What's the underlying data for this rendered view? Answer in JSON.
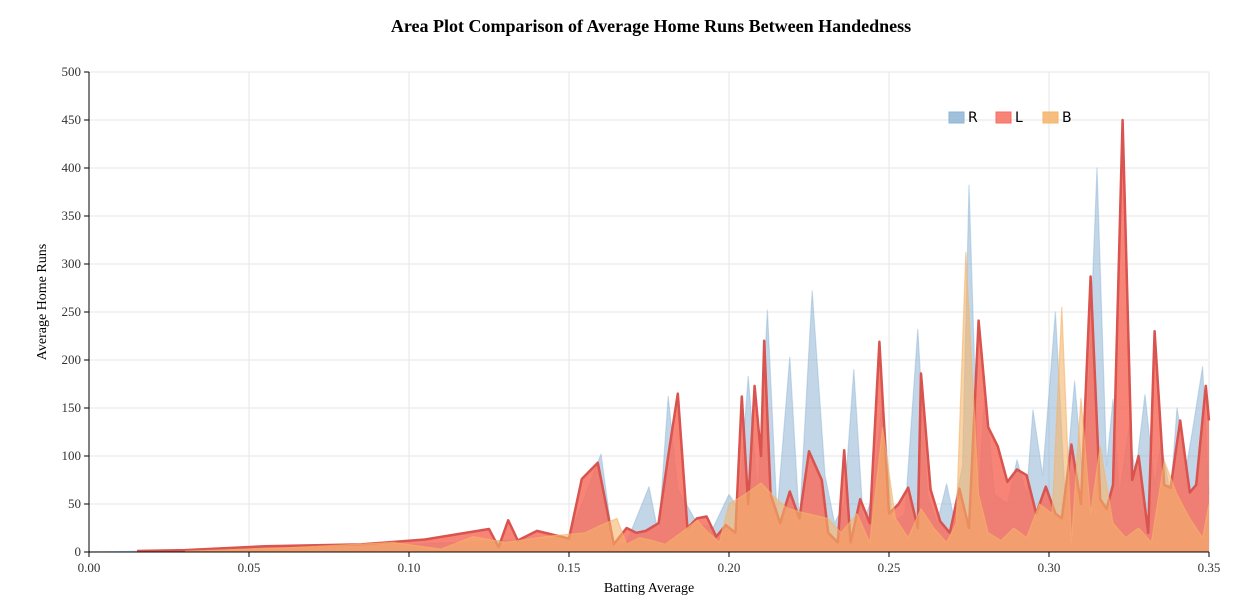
{
  "chart_data": {
    "type": "area",
    "title": "Area Plot Comparison of Average Home Runs Between Handedness",
    "xlabel": "Batting Average",
    "ylabel": "Average Home Runs",
    "xlim": [
      0,
      0.35
    ],
    "ylim": [
      0,
      500
    ],
    "x_ticks": [
      "0.00",
      "0.05",
      "0.10",
      "0.15",
      "0.20",
      "0.25",
      "0.30",
      "0.35"
    ],
    "y_ticks": [
      "0",
      "50",
      "100",
      "150",
      "200",
      "250",
      "300",
      "350",
      "400",
      "450",
      "500"
    ],
    "grid": true,
    "legend_position": "top-right",
    "series": [
      {
        "name": "R",
        "color": "#8fb5d6",
        "points": [
          [
            0,
            0
          ],
          [
            0.05,
            3
          ],
          [
            0.1,
            8
          ],
          [
            0.15,
            15
          ],
          [
            0.16,
            102
          ],
          [
            0.164,
            5
          ],
          [
            0.168,
            10
          ],
          [
            0.175,
            68
          ],
          [
            0.178,
            18
          ],
          [
            0.181,
            162
          ],
          [
            0.184,
            65
          ],
          [
            0.187,
            48
          ],
          [
            0.19,
            30
          ],
          [
            0.195,
            25
          ],
          [
            0.2,
            60
          ],
          [
            0.203,
            45
          ],
          [
            0.206,
            183
          ],
          [
            0.209,
            60
          ],
          [
            0.212,
            252
          ],
          [
            0.215,
            40
          ],
          [
            0.219,
            203
          ],
          [
            0.222,
            30
          ],
          [
            0.226,
            272
          ],
          [
            0.23,
            80
          ],
          [
            0.233,
            30
          ],
          [
            0.236,
            50
          ],
          [
            0.239,
            190
          ],
          [
            0.242,
            30
          ],
          [
            0.245,
            60
          ],
          [
            0.248,
            164
          ],
          [
            0.251,
            30
          ],
          [
            0.255,
            40
          ],
          [
            0.259,
            232
          ],
          [
            0.262,
            60
          ],
          [
            0.265,
            30
          ],
          [
            0.268,
            71
          ],
          [
            0.27,
            40
          ],
          [
            0.273,
            90
          ],
          [
            0.275,
            382
          ],
          [
            0.278,
            60
          ],
          [
            0.28,
            168
          ],
          [
            0.283,
            60
          ],
          [
            0.287,
            50
          ],
          [
            0.29,
            96
          ],
          [
            0.293,
            60
          ],
          [
            0.295,
            148
          ],
          [
            0.298,
            80
          ],
          [
            0.302,
            250
          ],
          [
            0.305,
            60
          ],
          [
            0.308,
            178
          ],
          [
            0.311,
            60
          ],
          [
            0.315,
            400
          ],
          [
            0.318,
            90
          ],
          [
            0.32,
            159
          ],
          [
            0.322,
            60
          ],
          [
            0.325,
            130
          ],
          [
            0.327,
            80
          ],
          [
            0.33,
            164
          ],
          [
            0.333,
            70
          ],
          [
            0.335,
            113
          ],
          [
            0.338,
            60
          ],
          [
            0.34,
            150
          ],
          [
            0.343,
            90
          ],
          [
            0.345,
            130
          ],
          [
            0.348,
            193
          ],
          [
            0.35,
            60
          ]
        ]
      },
      {
        "name": "L",
        "color": "#f76e5f",
        "points": [
          [
            0.015,
            1
          ],
          [
            0.03,
            2
          ],
          [
            0.055,
            6
          ],
          [
            0.085,
            8
          ],
          [
            0.105,
            13
          ],
          [
            0.125,
            24
          ],
          [
            0.128,
            5
          ],
          [
            0.131,
            33
          ],
          [
            0.134,
            12
          ],
          [
            0.14,
            22
          ],
          [
            0.15,
            14
          ],
          [
            0.154,
            76
          ],
          [
            0.159,
            93
          ],
          [
            0.164,
            8
          ],
          [
            0.168,
            25
          ],
          [
            0.171,
            20
          ],
          [
            0.174,
            22
          ],
          [
            0.178,
            30
          ],
          [
            0.181,
            100
          ],
          [
            0.184,
            165
          ],
          [
            0.187,
            25
          ],
          [
            0.19,
            35
          ],
          [
            0.193,
            37
          ],
          [
            0.196,
            16
          ],
          [
            0.199,
            28
          ],
          [
            0.202,
            20
          ],
          [
            0.204,
            162
          ],
          [
            0.206,
            50
          ],
          [
            0.208,
            173
          ],
          [
            0.21,
            100
          ],
          [
            0.211,
            220
          ],
          [
            0.213,
            60
          ],
          [
            0.216,
            30
          ],
          [
            0.219,
            63
          ],
          [
            0.222,
            35
          ],
          [
            0.225,
            105
          ],
          [
            0.229,
            75
          ],
          [
            0.231,
            20
          ],
          [
            0.234,
            10
          ],
          [
            0.236,
            106
          ],
          [
            0.238,
            10
          ],
          [
            0.241,
            55
          ],
          [
            0.244,
            30
          ],
          [
            0.247,
            219
          ],
          [
            0.25,
            40
          ],
          [
            0.253,
            50
          ],
          [
            0.256,
            67
          ],
          [
            0.259,
            25
          ],
          [
            0.26,
            186
          ],
          [
            0.263,
            65
          ],
          [
            0.266,
            32
          ],
          [
            0.269,
            20
          ],
          [
            0.272,
            66
          ],
          [
            0.275,
            25
          ],
          [
            0.278,
            241
          ],
          [
            0.281,
            130
          ],
          [
            0.284,
            110
          ],
          [
            0.287,
            73
          ],
          [
            0.29,
            86
          ],
          [
            0.293,
            80
          ],
          [
            0.296,
            40
          ],
          [
            0.299,
            68
          ],
          [
            0.302,
            40
          ],
          [
            0.304,
            35
          ],
          [
            0.307,
            112
          ],
          [
            0.31,
            50
          ],
          [
            0.313,
            287
          ],
          [
            0.316,
            55
          ],
          [
            0.318,
            45
          ],
          [
            0.32,
            70
          ],
          [
            0.323,
            450
          ],
          [
            0.326,
            75
          ],
          [
            0.328,
            100
          ],
          [
            0.331,
            20
          ],
          [
            0.333,
            230
          ],
          [
            0.336,
            70
          ],
          [
            0.338,
            67
          ],
          [
            0.341,
            137
          ],
          [
            0.344,
            62
          ],
          [
            0.346,
            70
          ],
          [
            0.349,
            173
          ],
          [
            0.352,
            88
          ],
          [
            0.355,
            120
          ],
          [
            0.358,
            136
          ],
          [
            0.35,
            137
          ]
        ]
      },
      {
        "name": "B",
        "color": "#f5b46a",
        "points": [
          [
            0.03,
            1
          ],
          [
            0.06,
            4
          ],
          [
            0.095,
            10
          ],
          [
            0.11,
            3
          ],
          [
            0.12,
            16
          ],
          [
            0.13,
            10
          ],
          [
            0.145,
            17
          ],
          [
            0.155,
            20
          ],
          [
            0.16,
            28
          ],
          [
            0.165,
            35
          ],
          [
            0.168,
            8
          ],
          [
            0.172,
            15
          ],
          [
            0.176,
            12
          ],
          [
            0.18,
            8
          ],
          [
            0.185,
            20
          ],
          [
            0.19,
            33
          ],
          [
            0.193,
            22
          ],
          [
            0.197,
            10
          ],
          [
            0.2,
            50
          ],
          [
            0.205,
            60
          ],
          [
            0.21,
            72
          ],
          [
            0.214,
            58
          ],
          [
            0.218,
            46
          ],
          [
            0.222,
            42
          ],
          [
            0.227,
            38
          ],
          [
            0.231,
            35
          ],
          [
            0.235,
            20
          ],
          [
            0.24,
            40
          ],
          [
            0.244,
            10
          ],
          [
            0.248,
            130
          ],
          [
            0.252,
            35
          ],
          [
            0.256,
            15
          ],
          [
            0.26,
            45
          ],
          [
            0.264,
            25
          ],
          [
            0.268,
            10
          ],
          [
            0.271,
            30
          ],
          [
            0.274,
            312
          ],
          [
            0.278,
            60
          ],
          [
            0.281,
            20
          ],
          [
            0.285,
            12
          ],
          [
            0.289,
            25
          ],
          [
            0.293,
            15
          ],
          [
            0.297,
            50
          ],
          [
            0.301,
            40
          ],
          [
            0.304,
            255
          ],
          [
            0.307,
            10
          ],
          [
            0.31,
            160
          ],
          [
            0.313,
            40
          ],
          [
            0.316,
            110
          ],
          [
            0.32,
            30
          ],
          [
            0.324,
            15
          ],
          [
            0.328,
            25
          ],
          [
            0.332,
            10
          ],
          [
            0.336,
            95
          ],
          [
            0.34,
            60
          ],
          [
            0.344,
            35
          ],
          [
            0.348,
            15
          ],
          [
            0.35,
            50
          ]
        ]
      }
    ]
  }
}
